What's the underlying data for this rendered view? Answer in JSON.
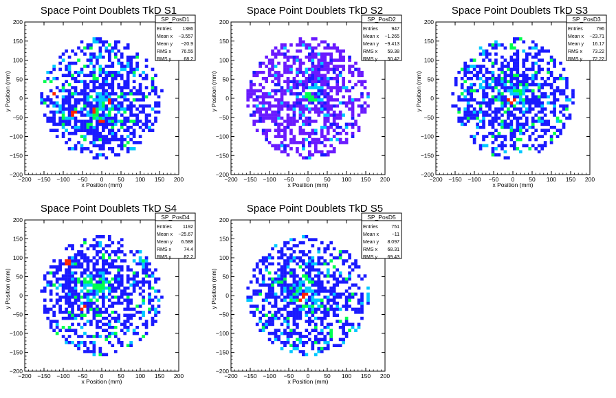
{
  "stat_labels": {
    "entries": "Entries",
    "mean_x": "Mean x",
    "mean_y": "Mean y",
    "rms_x": "RMS x",
    "rms_y": "RMS y"
  },
  "palette": [
    "#1a1aff",
    "#00c8ff",
    "#00ff50",
    "#ffee00",
    "#ff2200"
  ],
  "chart_data": [
    {
      "type": "heatmap",
      "title": "Space Point Doublets TkD S1",
      "xlabel": "x Position (mm)",
      "ylabel": "y Position (mm)",
      "xlim": [
        -200,
        200
      ],
      "ylim": [
        -200,
        200
      ],
      "xticks": [
        "−200",
        "−150",
        "−100",
        "−50",
        "0",
        "50",
        "100",
        "150",
        "200"
      ],
      "yticks": [
        "200",
        "150",
        "100",
        "50",
        "0",
        "−50",
        "−100",
        "−150",
        "−200"
      ],
      "stats": {
        "name": "SP_PosD1",
        "entries": "1386",
        "mean_x": "−3.557",
        "mean_y": "−20.9",
        "rms_x": "76.55",
        "rms_y": "68.2"
      },
      "density_center": [
        -10,
        -20
      ],
      "base_color": "#1a1aff",
      "hot_cells": [
        [
          -60,
          -50
        ],
        [
          -70,
          -40
        ],
        [
          -20,
          -30
        ],
        [
          -130,
          10
        ],
        [
          20,
          -10
        ],
        [
          0,
          -60
        ]
      ],
      "color_scale": "rainbow"
    },
    {
      "type": "heatmap",
      "title": "Space Point Doublets TkD S2",
      "xlabel": "x Position (mm)",
      "ylabel": "y Position (mm)",
      "xlim": [
        -200,
        200
      ],
      "ylim": [
        -200,
        200
      ],
      "xticks": [
        "−200",
        "−150",
        "−100",
        "−50",
        "0",
        "50",
        "100",
        "150",
        "200"
      ],
      "yticks": [
        "200",
        "150",
        "100",
        "50",
        "0",
        "−50",
        "−100",
        "−150",
        "−200"
      ],
      "stats": {
        "name": "SP_PosD2",
        "entries": "947",
        "mean_x": "−1.265",
        "mean_y": "−9.413",
        "rms_x": "59.38",
        "rms_y": "50.42"
      },
      "density_center": [
        0,
        10
      ],
      "base_color": "#6a1aff",
      "hot_cells": [
        [
          10,
          0
        ],
        [
          0,
          10
        ],
        [
          20,
          -5
        ]
      ],
      "color_scale": "violet"
    },
    {
      "type": "heatmap",
      "title": "Space Point Doublets TkD S3",
      "xlabel": "x Position (mm)",
      "ylabel": "y Position (mm)",
      "xlim": [
        -200,
        200
      ],
      "ylim": [
        -200,
        200
      ],
      "xticks": [
        "−200",
        "−150",
        "−100",
        "−50",
        "0",
        "50",
        "100",
        "150",
        "200"
      ],
      "yticks": [
        "200",
        "150",
        "100",
        "50",
        "0",
        "−50",
        "−100",
        "−150",
        "−200"
      ],
      "stats": {
        "name": "SP_PosD3",
        "entries": "796",
        "mean_x": "−23.71",
        "mean_y": "16.17",
        "rms_x": "73.22",
        "rms_y": "72.22"
      },
      "density_center": [
        -10,
        10
      ],
      "base_color": "#1a1aff",
      "hot_cells": [
        [
          0,
          -10
        ],
        [
          -10,
          0
        ]
      ],
      "color_scale": "rainbow"
    },
    {
      "type": "heatmap",
      "title": "Space Point Doublets TkD S4",
      "xlabel": "x Position (mm)",
      "ylabel": "y Position (mm)",
      "xlim": [
        -200,
        200
      ],
      "ylim": [
        -200,
        200
      ],
      "xticks": [
        "−200",
        "−150",
        "−100",
        "−50",
        "0",
        "50",
        "100",
        "150",
        "200"
      ],
      "yticks": [
        "200",
        "150",
        "100",
        "50",
        "0",
        "−50",
        "−100",
        "−150",
        "−200"
      ],
      "stats": {
        "name": "SP_PosD4",
        "entries": "1192",
        "mean_x": "−25.67",
        "mean_y": "6.588",
        "rms_x": "74.4",
        "rms_y": "82.2"
      },
      "density_center": [
        -30,
        20
      ],
      "base_color": "#1a1aff",
      "hot_cells": [
        [
          -90,
          90
        ],
        [
          -140,
          10
        ],
        [
          -50,
          -30
        ]
      ],
      "color_scale": "rainbow"
    },
    {
      "type": "heatmap",
      "title": "Space Point Doublets TkD S5",
      "xlabel": "x Position (mm)",
      "ylabel": "y Position (mm)",
      "xlim": [
        -200,
        200
      ],
      "ylim": [
        -200,
        200
      ],
      "xticks": [
        "−200",
        "−150",
        "−100",
        "−50",
        "0",
        "50",
        "100",
        "150",
        "200"
      ],
      "yticks": [
        "200",
        "150",
        "100",
        "50",
        "0",
        "−50",
        "−100",
        "−150",
        "−200"
      ],
      "stats": {
        "name": "SP_PosD5",
        "entries": "751",
        "mean_x": "−11",
        "mean_y": "8.097",
        "rms_x": "68.31",
        "rms_y": "69.43"
      },
      "density_center": [
        -10,
        0
      ],
      "base_color": "#1a1aff",
      "hot_cells": [
        [
          -10,
          0
        ],
        [
          -20,
          -10
        ]
      ],
      "color_scale": "rainbow"
    }
  ]
}
